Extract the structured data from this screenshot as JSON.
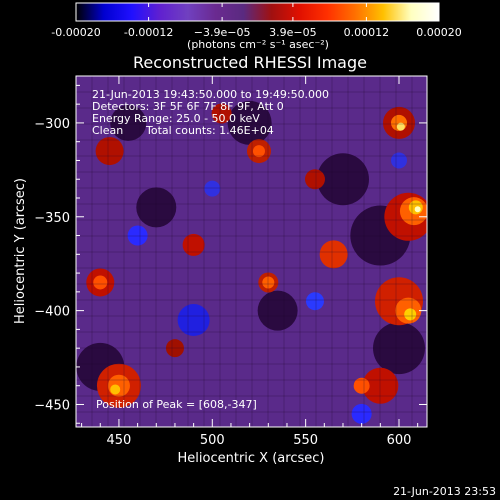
{
  "chart_data": {
    "type": "heatmap",
    "title": "Reconstructed RHESSI Image",
    "xlabel": "Heliocentric X (arcsec)",
    "ylabel": "Heliocentric Y (arcsec)",
    "xlim": [
      427,
      615
    ],
    "ylim": [
      -462,
      -275
    ],
    "x_ticks": [
      450,
      500,
      550,
      600
    ],
    "y_ticks": [
      -300,
      -350,
      -400,
      -450
    ],
    "colorbar": {
      "range": [
        -0.0002,
        0.0002
      ],
      "tick_labels": [
        "-0.00020",
        "-0.00012",
        "−3.9e−05",
        "3.9e−05",
        "0.00012",
        "0.00020"
      ],
      "tick_values": [
        -0.0002,
        -0.00012,
        -3.9e-05,
        3.9e-05,
        0.00012,
        0.0002
      ],
      "units_label": "(photons cm⁻² s⁻¹ asec⁻²)",
      "colormap": [
        "#000000",
        "#0000d0",
        "#2010ff",
        "#6020d0",
        "#7040c0",
        "#6a2a90",
        "#5a2a80",
        "#a01010",
        "#e01000",
        "#ff3000",
        "#ff7000",
        "#ffc000",
        "#ffffc0",
        "#ffffff"
      ]
    },
    "annotations": {
      "time_range": "21-Jun-2013 19:43:50.000 to 19:49:50.000",
      "detectors": "Detectors: 3F 5F 6F 7F 8F 9F, Att 0",
      "energy": "Energy Range: 25.0 - 50.0 keV",
      "method": "Clean",
      "counts": "Total counts: 1.46E+04",
      "peak": "Position of Peak = [608,-347]"
    },
    "peak": {
      "x": 608,
      "y": -347
    },
    "grid": false,
    "footer_timestamp": "21-Jun-2013 23:53"
  }
}
